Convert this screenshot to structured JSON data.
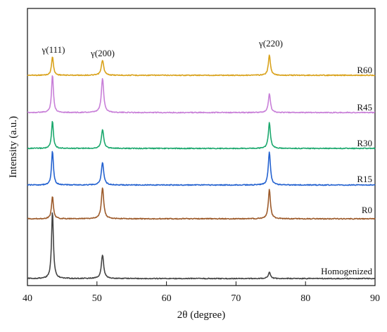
{
  "chart_data": {
    "type": "line",
    "xlabel": "2θ (degree)",
    "ylabel": "Intensity (a.u.)",
    "xlim": [
      40,
      90
    ],
    "x_ticks": [
      40,
      50,
      60,
      70,
      80,
      90
    ],
    "y_ticks_shown": false,
    "grid": false,
    "legend": "none (series labelled at right end of each trace)",
    "peak_annotations": [
      {
        "label": "γ(111)",
        "x": 43.6
      },
      {
        "label": "γ(200)",
        "x": 50.8
      },
      {
        "label": "γ(220)",
        "x": 74.8
      }
    ],
    "series": [
      {
        "name": "R60",
        "color": "#d9a21b",
        "peaks": [
          {
            "x": 43.6,
            "height": 1.0
          },
          {
            "x": 50.8,
            "height": 0.8
          },
          {
            "x": 74.8,
            "height": 1.05
          }
        ]
      },
      {
        "name": "R45",
        "color": "#c87fd8",
        "peaks": [
          {
            "x": 43.6,
            "height": 2.0
          },
          {
            "x": 50.8,
            "height": 1.8
          },
          {
            "x": 74.8,
            "height": 1.0
          }
        ]
      },
      {
        "name": "R30",
        "color": "#1ba86d",
        "peaks": [
          {
            "x": 43.6,
            "height": 1.45
          },
          {
            "x": 50.8,
            "height": 1.0
          },
          {
            "x": 74.8,
            "height": 1.35
          }
        ]
      },
      {
        "name": "R15",
        "color": "#2462d0",
        "peaks": [
          {
            "x": 43.6,
            "height": 1.8
          },
          {
            "x": 50.8,
            "height": 1.2
          },
          {
            "x": 74.8,
            "height": 1.75
          }
        ]
      },
      {
        "name": "R0",
        "color": "#9c5a2a",
        "peaks": [
          {
            "x": 43.6,
            "height": 1.2
          },
          {
            "x": 50.8,
            "height": 1.65
          },
          {
            "x": 74.8,
            "height": 1.55
          }
        ]
      },
      {
        "name": "Homogenized",
        "color": "#444444",
        "peaks": [
          {
            "x": 43.6,
            "height": 3.55
          },
          {
            "x": 50.8,
            "height": 1.25
          },
          {
            "x": 74.8,
            "height": 0.35
          }
        ]
      }
    ]
  }
}
